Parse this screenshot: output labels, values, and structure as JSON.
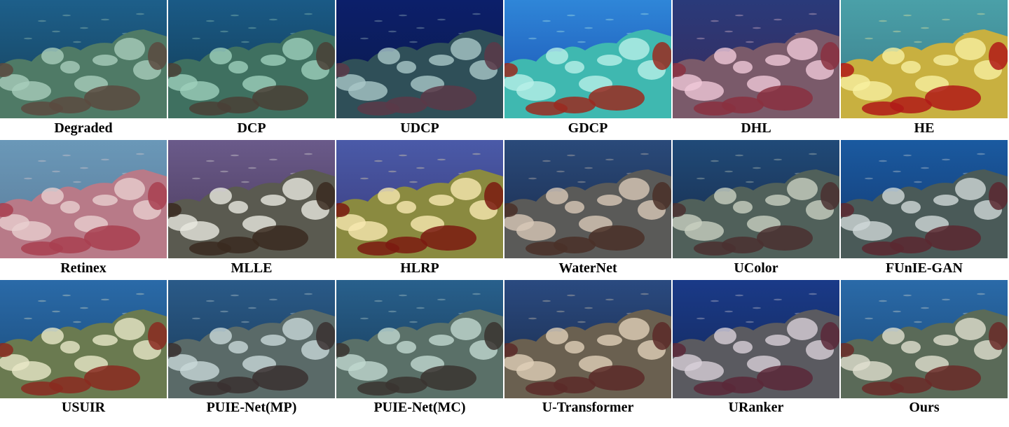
{
  "figure": {
    "rows": [
      [
        {
          "label": "Degraded",
          "palette": {
            "top": "#1d5f8a",
            "bottom": "#16405a",
            "reef": "#4f7a66",
            "coral": "#a8cdbb",
            "accent": "#5a4a3f"
          }
        },
        {
          "label": "DCP",
          "palette": {
            "top": "#1a5a86",
            "bottom": "#123a52",
            "reef": "#3f7060",
            "coral": "#9ed0bc",
            "accent": "#4a4036"
          }
        },
        {
          "label": "UDCP",
          "palette": {
            "top": "#0c1f6a",
            "bottom": "#0a1a4a",
            "reef": "#2f4f58",
            "coral": "#a9c7c8",
            "accent": "#5a3848"
          }
        },
        {
          "label": "GDCP",
          "palette": {
            "top": "#2f86d8",
            "bottom": "#1a4fb0",
            "reef": "#3fb8b0",
            "coral": "#b8f0e8",
            "accent": "#9a2a20"
          }
        },
        {
          "label": "DHL",
          "palette": {
            "top": "#2a3a7a",
            "bottom": "#3a2a5a",
            "reef": "#7a5a6a",
            "coral": "#f0c8d8",
            "accent": "#8a3040"
          }
        },
        {
          "label": "HE",
          "palette": {
            "top": "#4aa0a8",
            "bottom": "#3a7a88",
            "reef": "#c8b040",
            "coral": "#f8f0a0",
            "accent": "#b01a18"
          }
        }
      ],
      [
        {
          "label": "Retinex",
          "palette": {
            "top": "#6a98b8",
            "bottom": "#5a7a98",
            "reef": "#b87a88",
            "coral": "#e8d0d0",
            "accent": "#a84050"
          }
        },
        {
          "label": "MLLE",
          "palette": {
            "top": "#6a5a8a",
            "bottom": "#4a3a5a",
            "reef": "#5a5a50",
            "coral": "#e8e8e0",
            "accent": "#3a2a20"
          }
        },
        {
          "label": "HLRP",
          "palette": {
            "top": "#4a5aa8",
            "bottom": "#3a3a7a",
            "reef": "#8a8a40",
            "coral": "#f8e8b0",
            "accent": "#7a1a10"
          }
        },
        {
          "label": "WaterNet",
          "palette": {
            "top": "#2a4a7a",
            "bottom": "#1a2a4a",
            "reef": "#5a5a58",
            "coral": "#d8c8b8",
            "accent": "#4a3028"
          }
        },
        {
          "label": "UColor",
          "palette": {
            "top": "#204a78",
            "bottom": "#182a48",
            "reef": "#50605a",
            "coral": "#c8d0c0",
            "accent": "#4a3030"
          }
        },
        {
          "label": "FUnIE-GAN",
          "palette": {
            "top": "#1a5aa0",
            "bottom": "#143870",
            "reef": "#4a5a58",
            "coral": "#d0d8d8",
            "accent": "#5a2830"
          }
        }
      ],
      [
        {
          "label": "USUIR",
          "palette": {
            "top": "#2a6aa8",
            "bottom": "#1a4a78",
            "reef": "#6a7a50",
            "coral": "#e8e8c8",
            "accent": "#8a2a20"
          }
        },
        {
          "label": "PUIE-Net(MP)",
          "palette": {
            "top": "#2a5a88",
            "bottom": "#1a3a58",
            "reef": "#5a6a68",
            "coral": "#c8d8d8",
            "accent": "#3a3030"
          }
        },
        {
          "label": "PUIE-Net(MC)",
          "palette": {
            "top": "#28608c",
            "bottom": "#183a58",
            "reef": "#5a7068",
            "coral": "#c0d8d0",
            "accent": "#3a3430"
          }
        },
        {
          "label": "U-Transformer",
          "palette": {
            "top": "#2a4a80",
            "bottom": "#1a2a48",
            "reef": "#6a6050",
            "coral": "#e0d0b8",
            "accent": "#5a2a28"
          }
        },
        {
          "label": "URanker",
          "palette": {
            "top": "#1a3a88",
            "bottom": "#142858",
            "reef": "#5a5a60",
            "coral": "#d8d0d8",
            "accent": "#5a2838"
          }
        },
        {
          "label": "Ours",
          "palette": {
            "top": "#2a6aa8",
            "bottom": "#1a4878",
            "reef": "#5a6a58",
            "coral": "#e0e0d0",
            "accent": "#6a2a28"
          }
        }
      ]
    ]
  }
}
